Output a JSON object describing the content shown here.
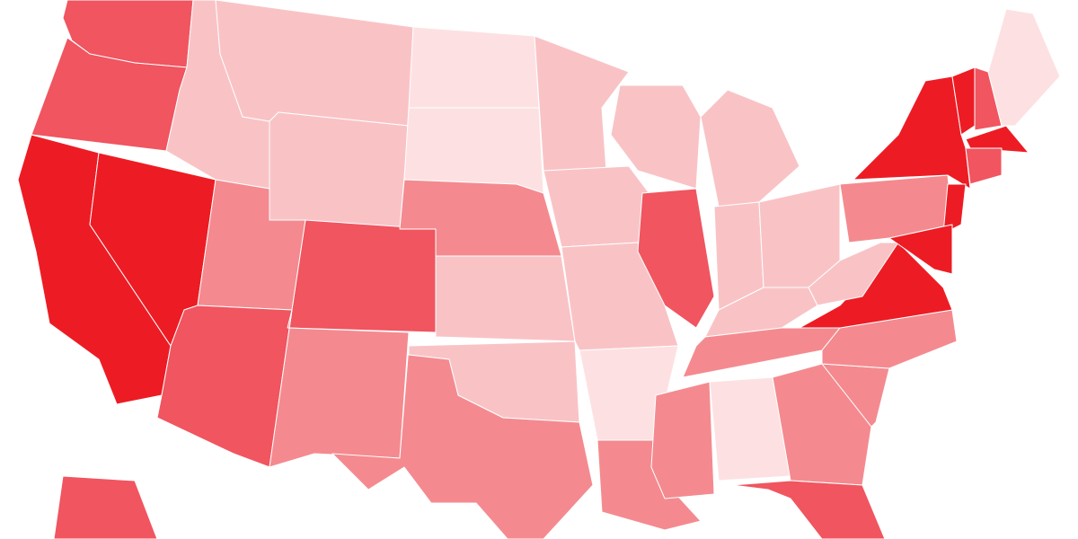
{
  "map": {
    "fills": [
      "#f05560",
      "#f05560",
      "#ed1c24",
      "#ed1c24",
      "#f9c3c6",
      "#f9c3c6",
      "#f9c3c6",
      "#f48a8f",
      "#f05560",
      "#f05560",
      "#f48a8f",
      "#fde1e2",
      "#fde1e2",
      "#f48a8f",
      "#f9c3c6",
      "#f9c3c6",
      "#f48a8f",
      "#f9c3c6",
      "#f9c3c6",
      "#f9c3c6",
      "#fde1e2",
      "#f48a8f",
      "#f9c3c6",
      "#f05560",
      "#f9c3c6",
      "#f9c3c6",
      "#f9c3c6",
      "#f9c3c6",
      "#f48a8f",
      "#f48a8f",
      "#fde1e2",
      "#f48a8f",
      "#f05560",
      "#f48a8f",
      "#f48a8f",
      "#ed1c24",
      "#f9c3c6",
      "#f48a8f",
      "#ed1c24",
      "#ed1c24",
      "#ed1c24",
      "#ed1c24",
      "#f05560",
      "#ed1c24",
      "#f05560",
      "#fde1e2",
      "#f05560"
    ]
  }
}
